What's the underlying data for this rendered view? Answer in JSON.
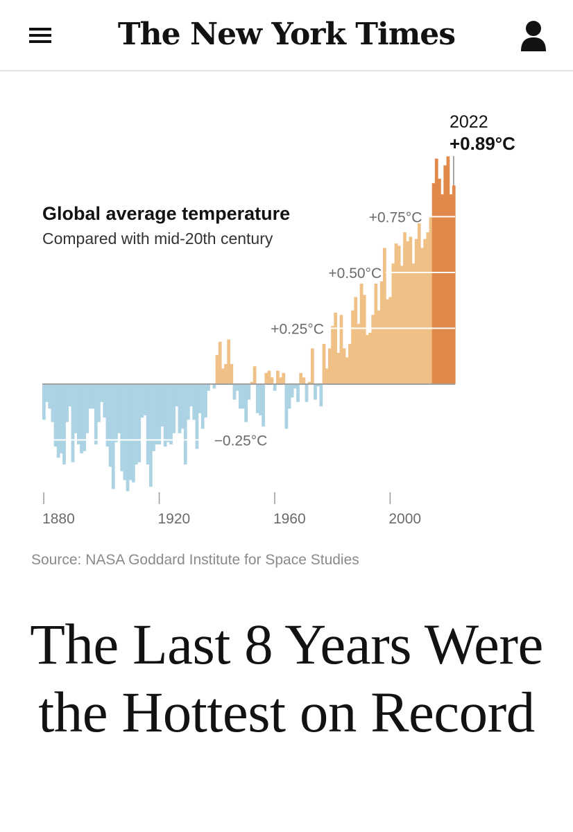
{
  "header": {
    "masthead": "The New York Times",
    "menu_icon": "hamburger-menu-icon",
    "user_icon": "user-account-icon"
  },
  "chart_data": {
    "type": "bar",
    "title": "Global average temperature",
    "subtitle": "Compared with mid-20th century",
    "xlabel": "",
    "ylabel": "",
    "x_ticks": [
      "1880",
      "1920",
      "1960",
      "2000"
    ],
    "ylim": [
      -0.6,
      1.0
    ],
    "x_range": [
      1880,
      2022
    ],
    "annotations": [
      {
        "year": 1940,
        "value": -0.25,
        "label": "−0.25°C"
      },
      {
        "year": 1978,
        "value": 0.25,
        "label": "+0.25°C"
      },
      {
        "year": 1998,
        "value": 0.5,
        "label": "+0.50°C"
      },
      {
        "year": 2012,
        "value": 0.75,
        "label": "+0.75°C"
      }
    ],
    "highlight": {
      "year": "2022",
      "value": "+0.89°C"
    },
    "recent_years_start": 2015,
    "colors": {
      "negative": "#abd3e3",
      "positive": "#f0c186",
      "recent": "#e0894a",
      "baseline": "#a0a0a0",
      "gridline": "#ffffff"
    },
    "x": [
      1880,
      1881,
      1882,
      1883,
      1884,
      1885,
      1886,
      1887,
      1888,
      1889,
      1890,
      1891,
      1892,
      1893,
      1894,
      1895,
      1896,
      1897,
      1898,
      1899,
      1900,
      1901,
      1902,
      1903,
      1904,
      1905,
      1906,
      1907,
      1908,
      1909,
      1910,
      1911,
      1912,
      1913,
      1914,
      1915,
      1916,
      1917,
      1918,
      1919,
      1920,
      1921,
      1922,
      1923,
      1924,
      1925,
      1926,
      1927,
      1928,
      1929,
      1930,
      1931,
      1932,
      1933,
      1934,
      1935,
      1936,
      1937,
      1938,
      1939,
      1940,
      1941,
      1942,
      1943,
      1944,
      1945,
      1946,
      1947,
      1948,
      1949,
      1950,
      1951,
      1952,
      1953,
      1954,
      1955,
      1956,
      1957,
      1958,
      1959,
      1960,
      1961,
      1962,
      1963,
      1964,
      1965,
      1966,
      1967,
      1968,
      1969,
      1970,
      1971,
      1972,
      1973,
      1974,
      1975,
      1976,
      1977,
      1978,
      1979,
      1980,
      1981,
      1982,
      1983,
      1984,
      1985,
      1986,
      1987,
      1988,
      1989,
      1990,
      1991,
      1992,
      1993,
      1994,
      1995,
      1996,
      1997,
      1998,
      1999,
      2000,
      2001,
      2002,
      2003,
      2004,
      2005,
      2006,
      2007,
      2008,
      2009,
      2010,
      2011,
      2012,
      2013,
      2014,
      2015,
      2016,
      2017,
      2018,
      2019,
      2020,
      2021,
      2022
    ],
    "values": [
      -0.16,
      -0.08,
      -0.11,
      -0.17,
      -0.28,
      -0.33,
      -0.31,
      -0.36,
      -0.17,
      -0.1,
      -0.35,
      -0.22,
      -0.27,
      -0.31,
      -0.3,
      -0.22,
      -0.11,
      -0.11,
      -0.27,
      -0.17,
      -0.08,
      -0.15,
      -0.28,
      -0.37,
      -0.47,
      -0.26,
      -0.22,
      -0.39,
      -0.43,
      -0.48,
      -0.43,
      -0.44,
      -0.36,
      -0.35,
      -0.15,
      -0.14,
      -0.36,
      -0.46,
      -0.3,
      -0.27,
      -0.27,
      -0.19,
      -0.28,
      -0.26,
      -0.27,
      -0.22,
      -0.1,
      -0.22,
      -0.2,
      -0.36,
      -0.16,
      -0.1,
      -0.16,
      -0.29,
      -0.13,
      -0.2,
      -0.15,
      -0.03,
      0.0,
      -0.02,
      0.13,
      0.19,
      0.07,
      0.09,
      0.2,
      0.09,
      -0.07,
      -0.03,
      -0.11,
      -0.11,
      -0.17,
      -0.07,
      0.01,
      0.08,
      -0.13,
      -0.14,
      -0.19,
      0.05,
      0.06,
      0.03,
      -0.03,
      0.06,
      0.03,
      0.05,
      -0.2,
      -0.11,
      -0.06,
      -0.02,
      -0.08,
      0.05,
      0.03,
      -0.08,
      0.01,
      0.16,
      -0.07,
      -0.01,
      -0.1,
      0.18,
      0.07,
      0.16,
      0.26,
      0.32,
      0.14,
      0.31,
      0.16,
      0.12,
      0.18,
      0.33,
      0.39,
      0.27,
      0.45,
      0.4,
      0.22,
      0.23,
      0.31,
      0.45,
      0.33,
      0.46,
      0.61,
      0.38,
      0.39,
      0.54,
      0.63,
      0.62,
      0.53,
      0.68,
      0.64,
      0.66,
      0.54,
      0.65,
      0.72,
      0.61,
      0.65,
      0.68,
      0.75,
      0.9,
      1.01,
      0.92,
      0.85,
      0.98,
      1.02,
      0.85,
      0.89
    ]
  },
  "source": "Source: NASA Goddard Institute for Space Studies",
  "headline": "The Last 8 Years Were the Hottest on Record"
}
